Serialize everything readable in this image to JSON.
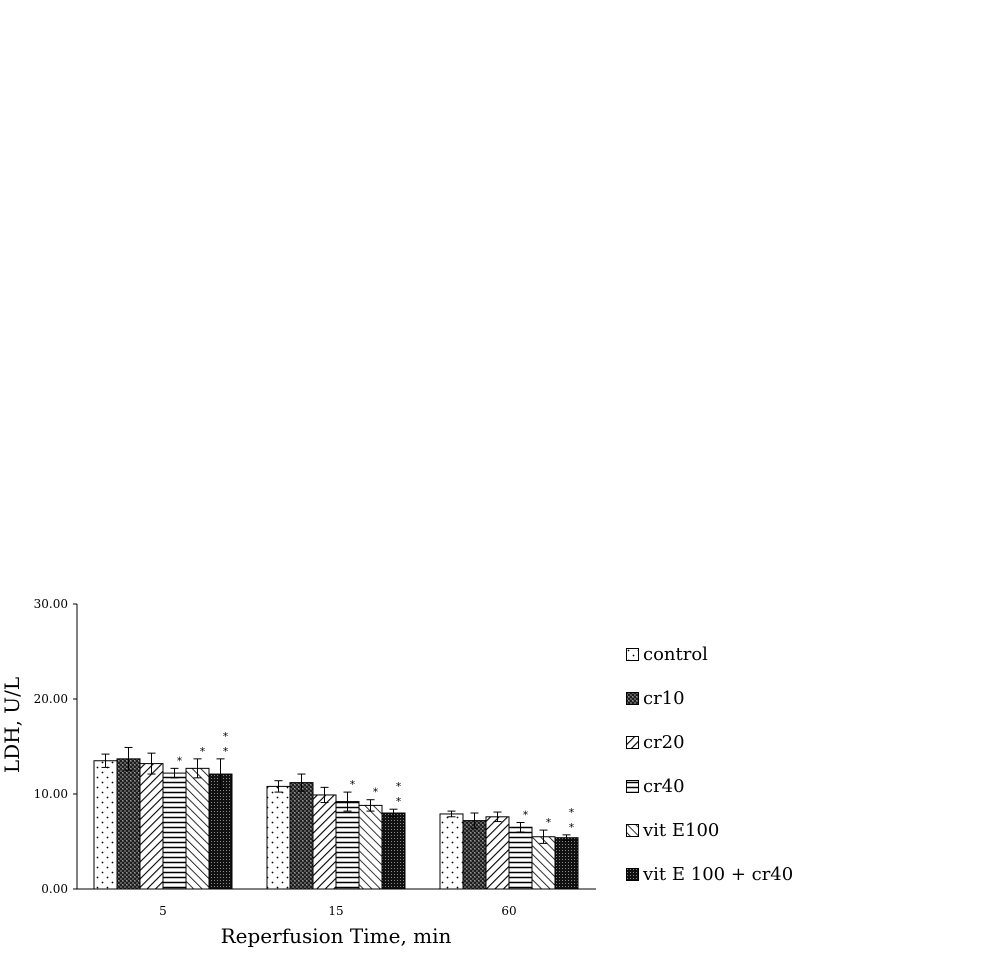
{
  "chart_data": {
    "type": "bar",
    "title": "",
    "xlabel": "Reperfusion Time, min",
    "ylabel": "LDH, U/L",
    "ylim": [
      0,
      30
    ],
    "yticks": [
      "0.00",
      "10.00",
      "20.00",
      "30.00"
    ],
    "categories": [
      "5",
      "15",
      "60"
    ],
    "legend_position": "right",
    "grid": false,
    "series": [
      {
        "name": "control",
        "pattern": "dots",
        "values": [
          13.5,
          10.8,
          7.9
        ],
        "errors": [
          0.7,
          0.6,
          0.3
        ],
        "marks": [
          "",
          "",
          ""
        ]
      },
      {
        "name": "cr10",
        "pattern": "dense-crosshatch",
        "values": [
          13.7,
          11.2,
          7.2
        ],
        "errors": [
          1.2,
          0.9,
          0.8
        ],
        "marks": [
          "",
          "",
          ""
        ]
      },
      {
        "name": "cr20",
        "pattern": "diagonal-back",
        "values": [
          13.2,
          9.9,
          7.6
        ],
        "errors": [
          1.1,
          0.8,
          0.5
        ],
        "marks": [
          "",
          "",
          ""
        ]
      },
      {
        "name": "cr40",
        "pattern": "horizontal",
        "values": [
          12.2,
          9.2,
          6.5
        ],
        "errors": [
          0.5,
          1.0,
          0.5
        ],
        "marks": [
          "*",
          "*",
          "*"
        ]
      },
      {
        "name": "vit E100",
        "pattern": "diagonal-forward",
        "values": [
          12.7,
          8.8,
          5.5
        ],
        "errors": [
          1.0,
          0.6,
          0.7
        ],
        "marks": [
          "*",
          "*",
          "*"
        ]
      },
      {
        "name": "vit E 100 + cr40",
        "pattern": "dark-dots",
        "values": [
          12.1,
          8.0,
          5.4
        ],
        "errors": [
          1.6,
          0.4,
          0.3
        ],
        "marks": [
          "**",
          "**",
          "**"
        ]
      }
    ]
  }
}
